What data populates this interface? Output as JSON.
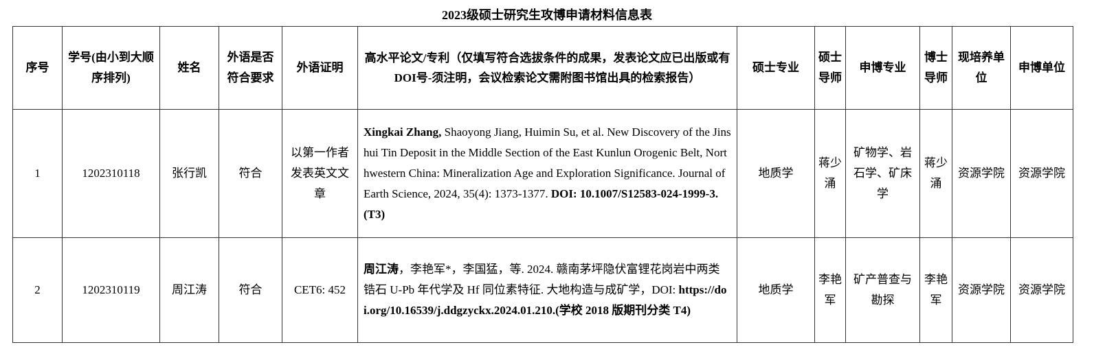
{
  "title": "2023级硕士研究生攻博申请材料信息表",
  "headers": [
    "序号",
    "学号(由小到大顺序排列)",
    "姓名",
    "外语是否符合要求",
    "外语证明",
    "高水平论文/专利（仅填写符合选拔条件的成果，发表论文应已出版或有DOI号-须注明，会议检索论文需附图书馆出具的检索报告）",
    "硕士专业",
    "硕士导师",
    "申博专业",
    "博士导师",
    "现培养单位",
    "申博单位"
  ],
  "rows": [
    {
      "index": "1",
      "student_id": "1202310118",
      "name": "张行凯",
      "lang_ok": "符合",
      "lang_proof": "以第一作者发表英文文章",
      "paper": {
        "p1": "Xingkai Zhang,",
        "p2": " Shaoyong Jiang, Huimin Su, et al. New Discovery of the Jinshui Tin Deposit in the Middle Section of the East Kunlun Orogenic Belt, Northwestern China: Mineralization Age and Exploration Significance. Journal of Earth Science, 2024, 35(4): 1373-1377. ",
        "p3": "DOI: 10.1007/S12583-024-1999-3. (T3)"
      },
      "master_major": "地质学",
      "master_advisor": "蒋少涌",
      "phd_major": "矿物学、岩石学、矿床学",
      "phd_advisor": "蒋少涌",
      "current_unit": "资源学院",
      "apply_unit": "资源学院"
    },
    {
      "index": "2",
      "student_id": "1202310119",
      "name": "周江涛",
      "lang_ok": "符合",
      "lang_proof": "CET6: 452",
      "paper": {
        "p1": "周江涛",
        "p2": "，李艳军*，李国猛，等. 2024. 赣南茅坪隐伏富锂花岗岩中两类锆石 U-Pb 年代学及 Hf 同位素特征. 大地构造与成矿学，DOI: ",
        "p3": "https://doi.org/10.16539/j.ddgzyckx.2024.01.210.(学校 2018 版期刊分类 T4)"
      },
      "master_major": "地质学",
      "master_advisor": "李艳军",
      "phd_major": "矿产普查与勘探",
      "phd_advisor": "李艳军",
      "current_unit": "资源学院",
      "apply_unit": "资源学院"
    }
  ]
}
